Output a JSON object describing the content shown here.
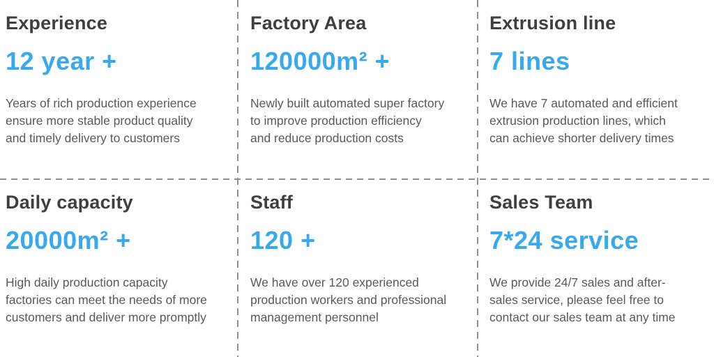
{
  "colors": {
    "accent_blue": "#38a9ec",
    "heading_gray": "#3f3f3f",
    "body_gray": "#595959",
    "divider_gray": "#8f8f8f",
    "background": "#ffffff"
  },
  "cells": [
    {
      "title": "Experience",
      "stat": "12 year +",
      "description": "Years of rich production experience\nensure more stable product quality\nand timely delivery to customers"
    },
    {
      "title": "Factory Area",
      "stat": "120000m² +",
      "description": "Newly built automated super factory\nto improve production efficiency\nand reduce production costs"
    },
    {
      "title": "Extrusion line",
      "stat": "7 lines",
      "description": "We have 7 automated and efficient\nextrusion production lines, which\ncan achieve shorter delivery times"
    },
    {
      "title": "Daily capacity",
      "stat": "20000m² +",
      "description": "High daily production capacity\nfactories can meet the needs of more\ncustomers and deliver more promptly"
    },
    {
      "title": "Staff",
      "stat": "120 +",
      "description": "We have over 120 experienced\nproduction workers and professional\nmanagement personnel"
    },
    {
      "title": "Sales Team",
      "stat": "7*24 service",
      "description": "We provide 24/7 sales and after-\nsales service, please feel free to\ncontact our sales team at any time"
    }
  ]
}
